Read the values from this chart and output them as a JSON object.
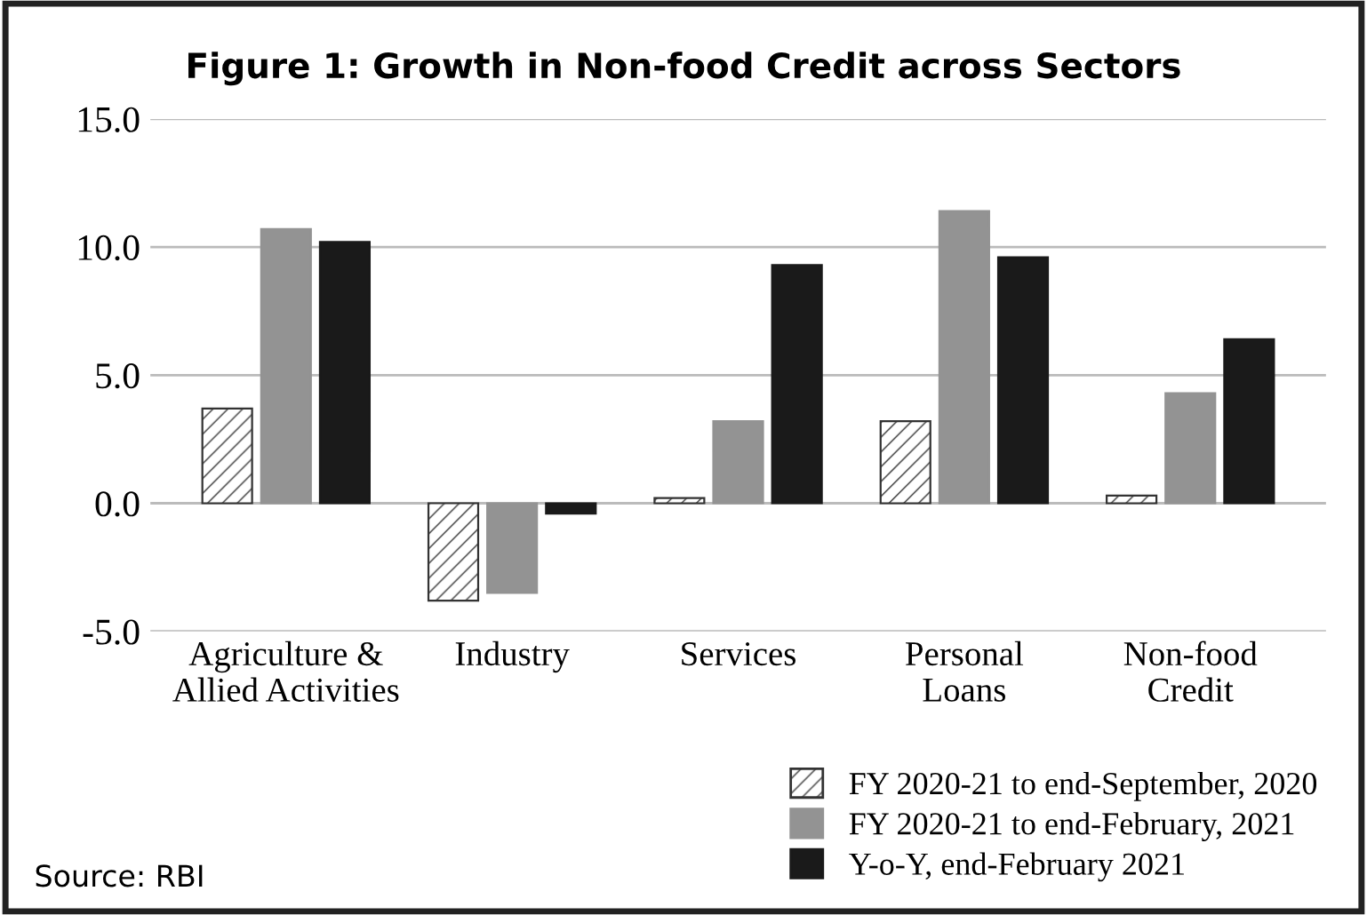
{
  "chart_data": {
    "type": "bar",
    "title": "Figure 1: Growth in Non-food Credit across Sectors",
    "categories": [
      "Agriculture &\nAllied Activities",
      "Industry",
      "Services",
      "Personal\nLoans",
      "Non-food\nCredit"
    ],
    "series": [
      {
        "name": "FY 2020-21 to end-September, 2020",
        "color": "#333333",
        "values": [
          3.7,
          -3.8,
          0.2,
          3.2,
          0.3
        ]
      },
      {
        "name": "FY 2020-21 to end-February, 2021",
        "color": "#939393",
        "values": [
          10.7,
          -3.5,
          3.2,
          11.4,
          4.3
        ]
      },
      {
        "name": "Y-o-Y, end-February 2021",
        "color": "#1a1a1a",
        "values": [
          10.2,
          -0.4,
          9.3,
          9.6,
          6.4
        ]
      }
    ],
    "ylim": [
      -5,
      15
    ],
    "yticks": [
      {
        "value": -5,
        "label": "-5.0"
      },
      {
        "value": 0,
        "label": "0.0"
      },
      {
        "value": 5,
        "label": "5.0"
      },
      {
        "value": 10,
        "label": "10.0"
      },
      {
        "value": 15,
        "label": "15.0"
      }
    ],
    "grid": "y",
    "legend": "bottom right",
    "annotations": [
      "Source: RBI"
    ]
  }
}
